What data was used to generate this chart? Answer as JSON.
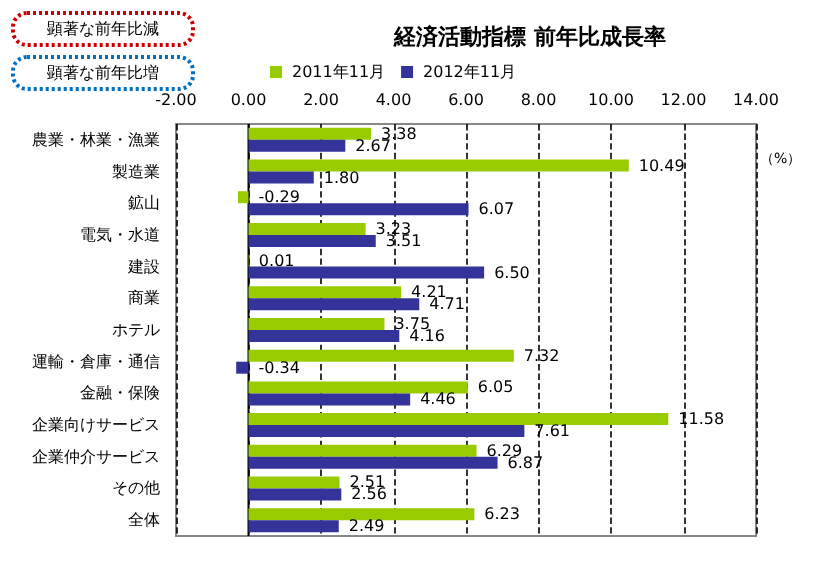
{
  "chart_data": {
    "type": "bar",
    "orientation": "horizontal",
    "title": "経済活動指標 前年比成長率",
    "xlabel": "（%）",
    "categories": [
      "農業・林業・漁業",
      "製造業",
      "鉱山",
      "電気・水道",
      "建設",
      "商業",
      "ホテル",
      "運輸・倉庫・通信",
      "金融・保険",
      "企業向けサービス",
      "企業仲介サービス",
      "その他",
      "全体"
    ],
    "series": [
      {
        "name": "2011年11月",
        "color": "#99cc00",
        "values": [
          3.38,
          10.49,
          -0.29,
          3.23,
          0.01,
          4.21,
          3.75,
          7.32,
          6.05,
          11.58,
          6.29,
          2.51,
          6.23
        ],
        "value_labels": [
          "3.38",
          "10.49",
          "-0.29",
          "3.23",
          "0.01",
          "4.21",
          "3.75",
          "7.32",
          "6.05",
          "11.58",
          "6.29",
          "2.51",
          "6.23"
        ]
      },
      {
        "name": "2012年11月",
        "color": "#333399",
        "values": [
          2.67,
          1.8,
          6.07,
          3.51,
          6.5,
          4.71,
          4.16,
          -0.34,
          4.46,
          7.61,
          6.87,
          2.56,
          2.49
        ],
        "value_labels": [
          "2.67",
          "1.80",
          "6.07",
          "3.51",
          "6.50",
          "4.71",
          "4.16",
          "-0.34",
          "4.46",
          "7.61",
          "6.87",
          "2.56",
          "2.49"
        ]
      }
    ],
    "xlim": [
      -2,
      14
    ],
    "xticks": [
      {
        "value": -2,
        "label": "-2.00"
      },
      {
        "value": 0,
        "label": "0.00"
      },
      {
        "value": 2,
        "label": "2.00"
      },
      {
        "value": 4,
        "label": "4.00"
      },
      {
        "value": 6,
        "label": "6.00"
      },
      {
        "value": 8,
        "label": "8.00"
      },
      {
        "value": 10,
        "label": "10.00"
      },
      {
        "value": 12,
        "label": "12.00"
      },
      {
        "value": 14,
        "label": "14.00"
      }
    ],
    "annotations": [
      "顕著な前年比減",
      "顕著な前年比増"
    ],
    "grid": "x",
    "legend": "top"
  }
}
